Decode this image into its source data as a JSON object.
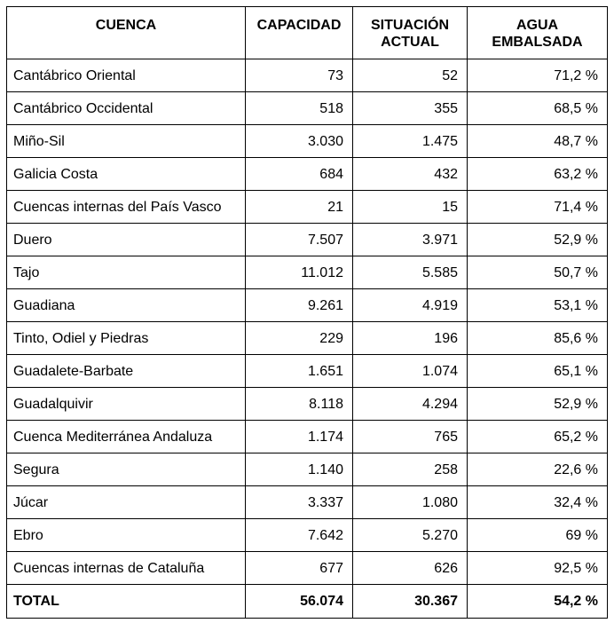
{
  "table": {
    "headers": {
      "cuenca": "CUENCA",
      "capacidad": "CAPACIDAD",
      "situacion_line1": "SITUACIÓN",
      "situacion_line2": "ACTUAL",
      "agua_line1": "AGUA",
      "agua_line2": "EMBALSADA"
    },
    "rows": [
      {
        "cuenca": "Cantábrico Oriental",
        "capacidad": "73",
        "situacion": "52",
        "agua": "71,2 %"
      },
      {
        "cuenca": "Cantábrico Occidental",
        "capacidad": "518",
        "situacion": "355",
        "agua": "68,5 %"
      },
      {
        "cuenca": "Miño-Sil",
        "capacidad": "3.030",
        "situacion": "1.475",
        "agua": "48,7 %"
      },
      {
        "cuenca": "Galicia Costa",
        "capacidad": "684",
        "situacion": "432",
        "agua": "63,2 %"
      },
      {
        "cuenca": "Cuencas internas del País Vasco",
        "capacidad": "21",
        "situacion": "15",
        "agua": "71,4 %"
      },
      {
        "cuenca": "Duero",
        "capacidad": "7.507",
        "situacion": "3.971",
        "agua": "52,9 %"
      },
      {
        "cuenca": "Tajo",
        "capacidad": "11.012",
        "situacion": "5.585",
        "agua": "50,7 %"
      },
      {
        "cuenca": "Guadiana",
        "capacidad": "9.261",
        "situacion": "4.919",
        "agua": "53,1 %"
      },
      {
        "cuenca": "Tinto, Odiel y Piedras",
        "capacidad": "229",
        "situacion": "196",
        "agua": "85,6 %"
      },
      {
        "cuenca": "Guadalete-Barbate",
        "capacidad": "1.651",
        "situacion": "1.074",
        "agua": "65,1 %"
      },
      {
        "cuenca": "Guadalquivir",
        "capacidad": "8.118",
        "situacion": "4.294",
        "agua": "52,9 %"
      },
      {
        "cuenca": "Cuenca Mediterránea Andaluza",
        "capacidad": "1.174",
        "situacion": "765",
        "agua": "65,2 %"
      },
      {
        "cuenca": "Segura",
        "capacidad": "1.140",
        "situacion": "258",
        "agua": "22,6 %"
      },
      {
        "cuenca": "Júcar",
        "capacidad": "3.337",
        "situacion": "1.080",
        "agua": "32,4 %"
      },
      {
        "cuenca": "Ebro",
        "capacidad": "7.642",
        "situacion": "5.270",
        "agua": "69 %"
      },
      {
        "cuenca": "Cuencas internas de Cataluña",
        "capacidad": "677",
        "situacion": "626",
        "agua": "92,5 %"
      }
    ],
    "total": {
      "cuenca": "TOTAL",
      "capacidad": "56.074",
      "situacion": "30.367",
      "agua": "54,2 %"
    }
  }
}
